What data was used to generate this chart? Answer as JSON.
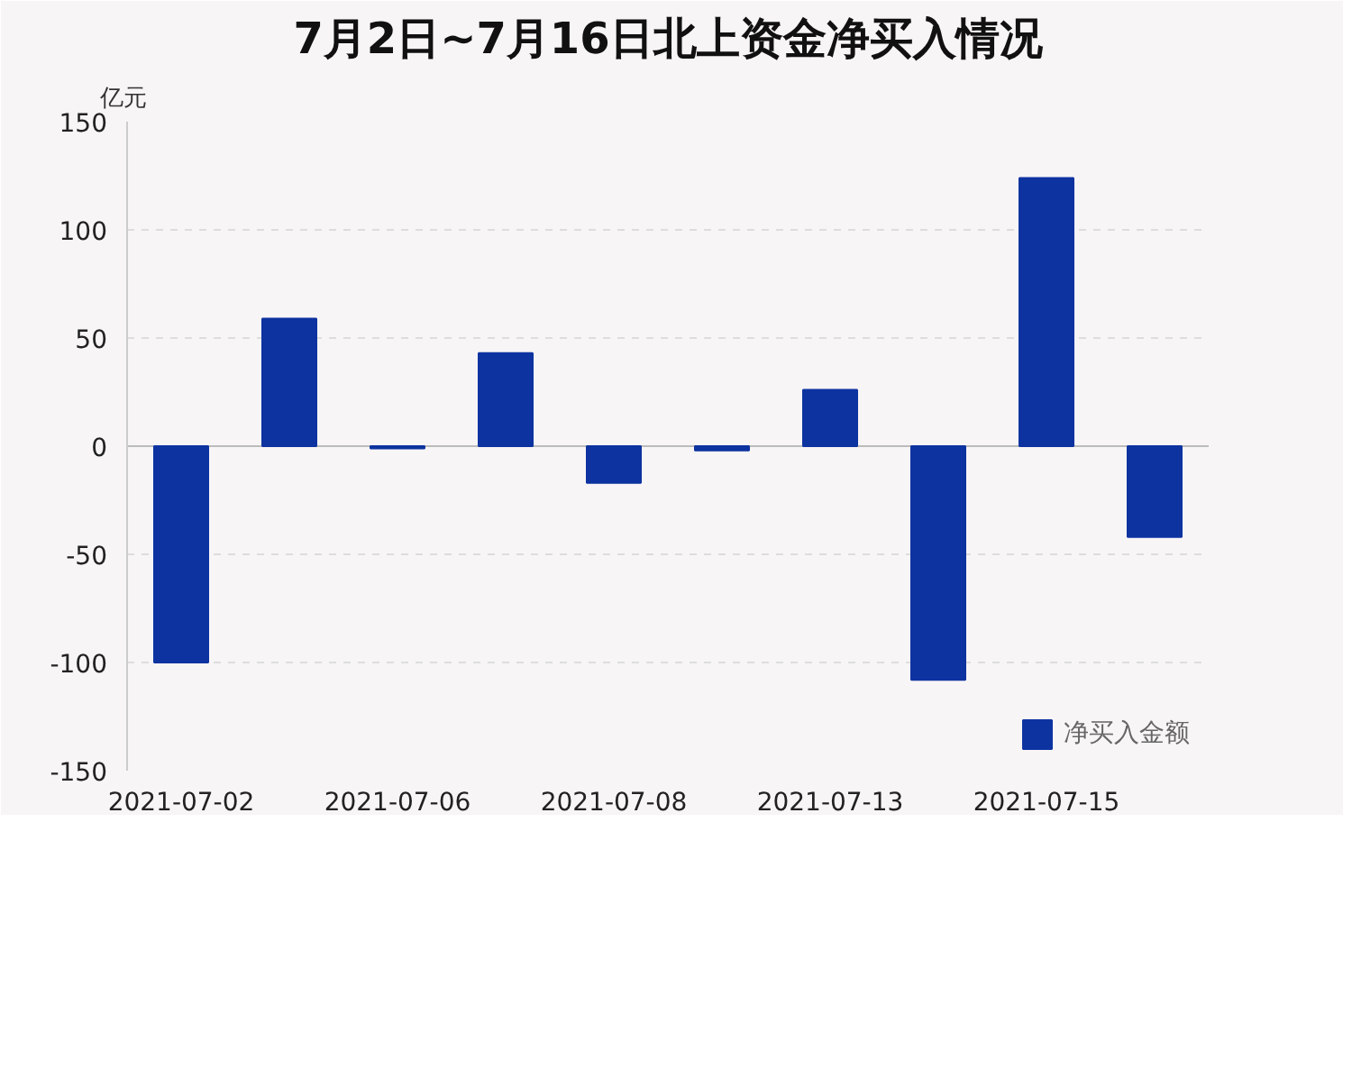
{
  "chart_data": {
    "type": "bar",
    "title": "7月2日~7月16日北上资金净买入情况",
    "ylabel": "亿元",
    "categories": [
      "2021-07-02",
      null,
      "2021-07-06",
      null,
      "2021-07-08",
      null,
      "2021-07-13",
      null,
      "2021-07-15",
      null
    ],
    "series": [
      {
        "name": "净买入金额",
        "color": "#0d33a0",
        "values": [
          -100,
          59,
          -1,
          43,
          -17,
          -2,
          26,
          -108,
          124,
          -42
        ]
      }
    ],
    "ylim": [
      -150,
      150
    ],
    "yticks": [
      -150,
      -100,
      -50,
      0,
      50,
      100,
      150
    ],
    "grid": "y",
    "legend": "bottom right"
  }
}
